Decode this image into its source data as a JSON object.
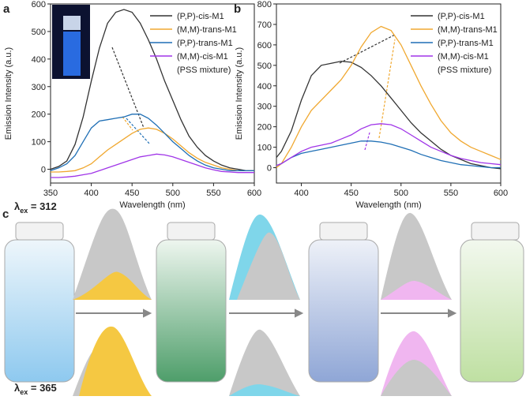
{
  "chart_data": [
    {
      "type": "line",
      "panel_label": "a",
      "x_label": "Wavelength (nm)",
      "y_label": "Emission Intensity (a.u.)",
      "x": [
        350,
        360,
        370,
        380,
        390,
        400,
        410,
        420,
        430,
        440,
        450,
        460,
        470,
        480,
        490,
        500,
        510,
        520,
        530,
        540,
        550,
        560,
        570,
        580,
        590,
        600
      ],
      "xlim": [
        350,
        600
      ],
      "ylim": [
        -50,
        600
      ],
      "xticks": [
        350,
        400,
        450,
        500,
        550,
        600
      ],
      "yticks": [
        0,
        100,
        200,
        300,
        400,
        500,
        600
      ],
      "legend_note": "(PSS mixture)",
      "series": [
        {
          "name": "(P,P)-cis-M1",
          "color": "#333333",
          "values": [
            0,
            10,
            30,
            90,
            190,
            320,
            440,
            530,
            570,
            580,
            570,
            530,
            470,
            400,
            320,
            250,
            180,
            120,
            80,
            50,
            30,
            15,
            5,
            0,
            -5,
            -5
          ]
        },
        {
          "name": "(M,M)-trans-M1",
          "color": "#f0a830",
          "values": [
            -10,
            -10,
            -8,
            -5,
            5,
            20,
            45,
            70,
            90,
            110,
            130,
            145,
            150,
            145,
            130,
            110,
            85,
            60,
            40,
            25,
            15,
            5,
            0,
            -5,
            -5,
            -5
          ]
        },
        {
          "name": "(P,P)-trans-M1",
          "color": "#1f6fb5",
          "values": [
            -5,
            5,
            20,
            50,
            100,
            150,
            175,
            180,
            185,
            190,
            200,
            200,
            185,
            160,
            130,
            100,
            75,
            50,
            30,
            15,
            5,
            0,
            -5,
            -5,
            -5,
            -5
          ]
        },
        {
          "name": "(M,M)-cis-M1",
          "color": "#a035e8",
          "values": [
            -30,
            -30,
            -28,
            -25,
            -20,
            -15,
            -5,
            5,
            15,
            25,
            35,
            45,
            50,
            55,
            52,
            45,
            35,
            25,
            15,
            5,
            -2,
            -8,
            -10,
            -12,
            -12,
            -12
          ]
        }
      ]
    },
    {
      "type": "line",
      "panel_label": "b",
      "x_label": "Wavelength (nm)",
      "y_label": "Emission Intensity (a.u.)",
      "x": [
        375,
        380,
        390,
        400,
        410,
        420,
        430,
        440,
        450,
        460,
        470,
        480,
        490,
        500,
        510,
        520,
        530,
        540,
        550,
        560,
        570,
        580,
        590,
        600
      ],
      "xlim": [
        375,
        600
      ],
      "ylim": [
        -75,
        800
      ],
      "xticks": [
        400,
        450,
        500,
        550,
        600
      ],
      "yticks": [
        0,
        100,
        200,
        300,
        400,
        500,
        600,
        700,
        800
      ],
      "legend_note": "(PSS mixture)",
      "series": [
        {
          "name": "(P,P)-cis-M1",
          "color": "#333333",
          "values": [
            50,
            80,
            180,
            330,
            450,
            500,
            510,
            520,
            515,
            490,
            450,
            400,
            340,
            280,
            220,
            170,
            130,
            90,
            60,
            40,
            20,
            10,
            0,
            -5
          ]
        },
        {
          "name": "(M,M)-trans-M1",
          "color": "#f0a830",
          "values": [
            0,
            20,
            100,
            200,
            280,
            330,
            380,
            430,
            500,
            590,
            660,
            690,
            670,
            600,
            500,
            400,
            310,
            230,
            170,
            130,
            100,
            80,
            60,
            40
          ]
        },
        {
          "name": "(P,P)-trans-M1",
          "color": "#1f6fb5",
          "values": [
            10,
            20,
            50,
            70,
            80,
            90,
            100,
            110,
            120,
            130,
            130,
            125,
            115,
            100,
            85,
            65,
            50,
            35,
            25,
            15,
            10,
            5,
            0,
            0
          ]
        },
        {
          "name": "(M,M)-cis-M1",
          "color": "#a035e8",
          "values": [
            10,
            20,
            50,
            80,
            100,
            110,
            120,
            140,
            160,
            190,
            210,
            215,
            210,
            190,
            160,
            130,
            100,
            80,
            60,
            45,
            35,
            25,
            20,
            15
          ]
        }
      ]
    }
  ],
  "scheme": {
    "panel_label": "c",
    "top": {
      "symbol": "λ",
      "subscript": "ex",
      "text": " = 312"
    },
    "bottom": {
      "symbol": "λ",
      "subscript": "ex",
      "text": " = 365"
    }
  }
}
